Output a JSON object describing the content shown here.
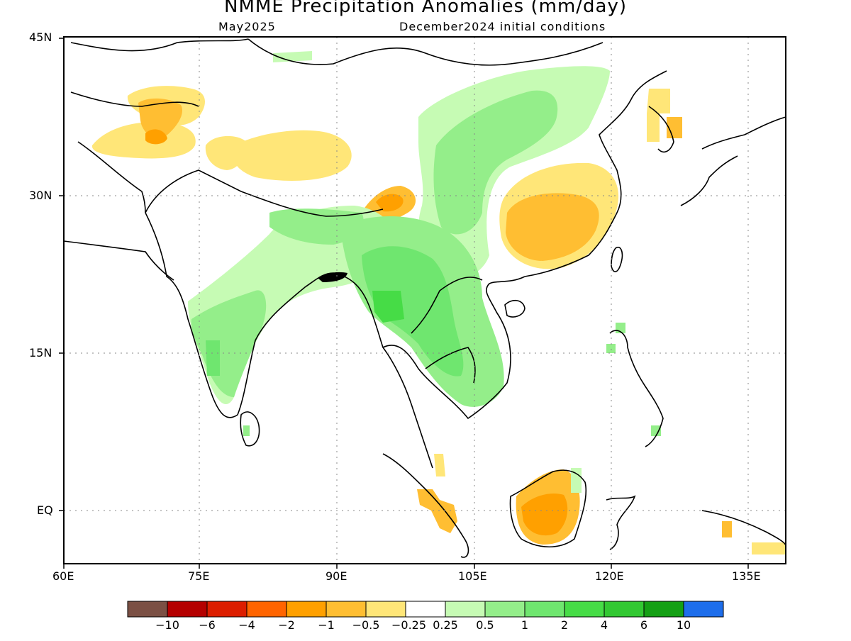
{
  "title": "NMME Precipitation Anomalies (mm/day)",
  "subtitle_left": "May2025",
  "subtitle_right": "December2024 initial conditions",
  "map": {
    "lon_range": [
      60,
      140
    ],
    "lat_range": [
      -5,
      45
    ],
    "lon_ticks": [
      "60E",
      "75E",
      "90E",
      "105E",
      "120E",
      "135E"
    ],
    "lat_ticks": [
      "45N",
      "30N",
      "15N",
      "EQ"
    ],
    "grid": "dotted",
    "regions": [
      {
        "name": "Afghanistan-Pakistan dry band",
        "category": "-0.5 to -0.25"
      },
      {
        "name": "Tibetan Plateau dry band",
        "category": "-0.5 to -0.25"
      },
      {
        "name": "Eastern Himalaya dry spot",
        "category": "-2 to -1"
      },
      {
        "name": "Southeast China dry area",
        "category": "-1 to -0.5"
      },
      {
        "name": "Borneo dry area",
        "category": "-2 to -1"
      },
      {
        "name": "Sumatra dry area",
        "category": "-2 to -1"
      },
      {
        "name": "India wet band",
        "category": "0.5 to 2"
      },
      {
        "name": "Indochina wet area",
        "category": "1 to 4"
      },
      {
        "name": "Sichuan-Mongolia wet band",
        "category": "0.25 to 1"
      }
    ]
  },
  "colorbar": {
    "colors": [
      "#7b5044",
      "#b40000",
      "#dc1e00",
      "#ff6400",
      "#ffa000",
      "#ffbe32",
      "#ffe678",
      "#ffffff",
      "#c6fbb4",
      "#94ee8a",
      "#6fe66f",
      "#46dc46",
      "#32c832",
      "#14a014",
      "#1e6eeb"
    ],
    "labels": [
      "−10",
      "−6",
      "−4",
      "−2",
      "−1",
      "−0.5",
      "−0.25",
      "0.25",
      "0.5",
      "1",
      "2",
      "4",
      "6",
      "10"
    ]
  }
}
